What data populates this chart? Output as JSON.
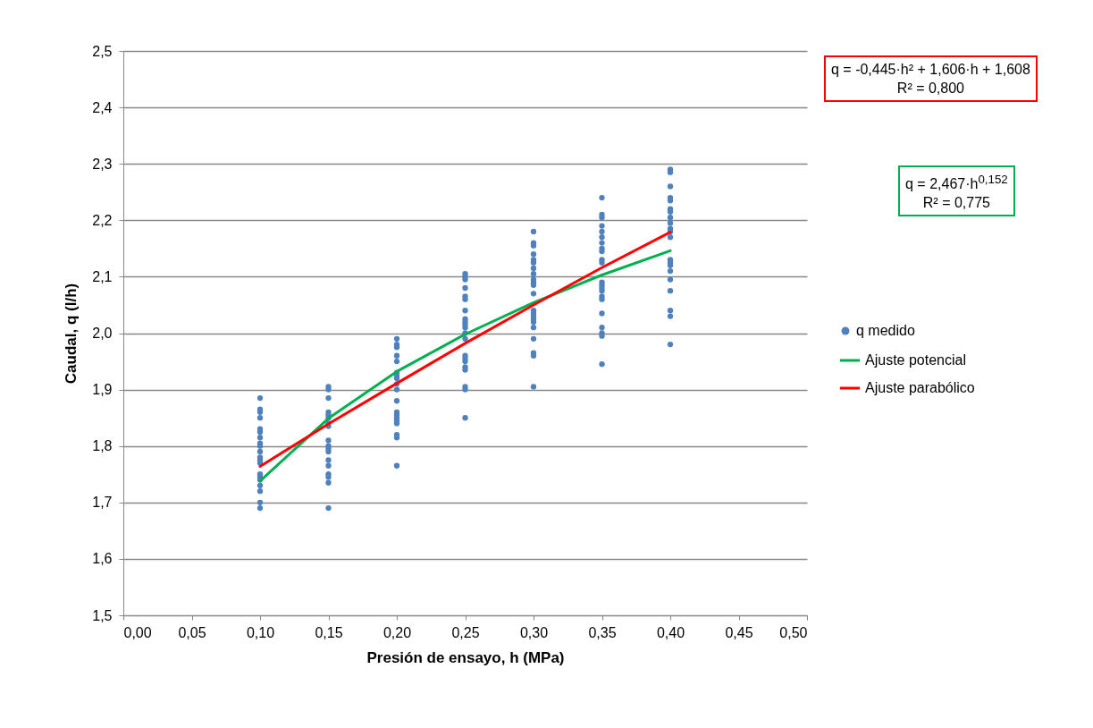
{
  "chart_data": {
    "type": "scatter",
    "xlabel": "Presión de ensayo, h (MPa)",
    "ylabel": "Caudal, q (l/h)",
    "xlim": [
      0,
      0.5
    ],
    "xticks": [
      {
        "value": 0,
        "label": "0,00"
      },
      {
        "value": 0.05,
        "label": "0,05"
      },
      {
        "value": 0.1,
        "label": "0,10"
      },
      {
        "value": 0.15,
        "label": "0,15"
      },
      {
        "value": 0.2,
        "label": "0,20"
      },
      {
        "value": 0.25,
        "label": "0,25"
      },
      {
        "value": 0.3,
        "label": "0,30"
      },
      {
        "value": 0.35,
        "label": "0,35"
      },
      {
        "value": 0.4,
        "label": "0,40"
      },
      {
        "value": 0.45,
        "label": "0,45"
      },
      {
        "value": 0.5,
        "label": "0,50"
      }
    ],
    "ylim": [
      1.5,
      2.5
    ],
    "yticks": [
      {
        "value": 1.5,
        "label": "1,5"
      },
      {
        "value": 1.6,
        "label": "1,6"
      },
      {
        "value": 1.7,
        "label": "1,7"
      },
      {
        "value": 1.8,
        "label": "1,8"
      },
      {
        "value": 1.9,
        "label": "1,9"
      },
      {
        "value": 2.0,
        "label": "2,0"
      },
      {
        "value": 2.1,
        "label": "2,1"
      },
      {
        "value": 2.2,
        "label": "2,2"
      },
      {
        "value": 2.3,
        "label": "2,3"
      },
      {
        "value": 2.4,
        "label": "2,4"
      },
      {
        "value": 2.5,
        "label": "2,5"
      }
    ],
    "grid": "y",
    "legend": "right",
    "series": [
      {
        "name": "q medido",
        "color": "#4f81bd",
        "x": [
          0.1,
          0.1,
          0.1,
          0.1,
          0.1,
          0.1,
          0.1,
          0.1,
          0.1,
          0.1,
          0.1,
          0.1,
          0.1,
          0.1,
          0.1,
          0.1,
          0.1,
          0.1,
          0.1,
          0.1,
          0.15,
          0.15,
          0.15,
          0.15,
          0.15,
          0.15,
          0.15,
          0.15,
          0.15,
          0.15,
          0.15,
          0.15,
          0.15,
          0.15,
          0.15,
          0.15,
          0.15,
          0.15,
          0.2,
          0.2,
          0.2,
          0.2,
          0.2,
          0.2,
          0.2,
          0.2,
          0.2,
          0.2,
          0.2,
          0.2,
          0.2,
          0.2,
          0.2,
          0.2,
          0.2,
          0.2,
          0.2,
          0.25,
          0.25,
          0.25,
          0.25,
          0.25,
          0.25,
          0.25,
          0.25,
          0.25,
          0.25,
          0.25,
          0.25,
          0.25,
          0.25,
          0.25,
          0.25,
          0.25,
          0.25,
          0.25,
          0.25,
          0.25,
          0.3,
          0.3,
          0.3,
          0.3,
          0.3,
          0.3,
          0.3,
          0.3,
          0.3,
          0.3,
          0.3,
          0.3,
          0.3,
          0.3,
          0.3,
          0.3,
          0.3,
          0.3,
          0.3,
          0.3,
          0.3,
          0.3,
          0.35,
          0.35,
          0.35,
          0.35,
          0.35,
          0.35,
          0.35,
          0.35,
          0.35,
          0.35,
          0.35,
          0.35,
          0.35,
          0.35,
          0.35,
          0.35,
          0.35,
          0.35,
          0.35,
          0.35,
          0.35,
          0.35,
          0.4,
          0.4,
          0.4,
          0.4,
          0.4,
          0.4,
          0.4,
          0.4,
          0.4,
          0.4,
          0.4,
          0.4,
          0.4,
          0.4,
          0.4,
          0.4,
          0.4,
          0.4,
          0.4,
          0.4,
          0.4
        ],
        "values": [
          1.885,
          1.865,
          1.86,
          1.85,
          1.83,
          1.825,
          1.815,
          1.805,
          1.8,
          1.79,
          1.78,
          1.775,
          1.77,
          1.75,
          1.745,
          1.74,
          1.73,
          1.72,
          1.7,
          1.69,
          1.905,
          1.9,
          1.885,
          1.86,
          1.855,
          1.85,
          1.84,
          1.835,
          1.81,
          1.8,
          1.795,
          1.79,
          1.775,
          1.765,
          1.75,
          1.745,
          1.735,
          1.69,
          1.99,
          1.98,
          1.975,
          1.96,
          1.95,
          1.93,
          1.925,
          1.92,
          1.91,
          1.9,
          1.88,
          1.86,
          1.855,
          1.85,
          1.845,
          1.84,
          1.82,
          1.815,
          1.765,
          2.105,
          2.1,
          2.095,
          2.08,
          2.065,
          2.06,
          2.04,
          2.025,
          2.02,
          2.015,
          2.01,
          2.0,
          1.99,
          1.96,
          1.955,
          1.95,
          1.94,
          1.935,
          1.905,
          1.9,
          1.85,
          2.18,
          2.16,
          2.155,
          2.14,
          2.13,
          2.125,
          2.115,
          2.105,
          2.095,
          2.09,
          2.085,
          2.07,
          2.04,
          2.035,
          2.03,
          2.025,
          2.02,
          2.01,
          1.99,
          1.965,
          1.96,
          1.905,
          2.24,
          2.21,
          2.205,
          2.19,
          2.18,
          2.17,
          2.16,
          2.15,
          2.145,
          2.13,
          2.125,
          2.09,
          2.085,
          2.08,
          2.075,
          2.065,
          2.06,
          2.035,
          2.01,
          2.0,
          1.995,
          1.945,
          2.29,
          2.285,
          2.26,
          2.24,
          2.235,
          2.22,
          2.215,
          2.205,
          2.195,
          2.185,
          2.18,
          2.17,
          2.13,
          2.125,
          2.12,
          2.11,
          2.095,
          2.075,
          2.04,
          2.03,
          1.98
        ]
      },
      {
        "name": "Ajuste potencial",
        "type": "line",
        "color": "#00b050",
        "x": [
          0.1,
          0.15,
          0.2,
          0.25,
          0.3,
          0.35,
          0.4
        ],
        "values": [
          1.738,
          1.849,
          1.932,
          1.998,
          2.054,
          2.103,
          2.146
        ]
      },
      {
        "name": "Ajuste parabólico",
        "type": "line",
        "color": "#ff0000",
        "x": [
          0.1,
          0.15,
          0.2,
          0.25,
          0.3,
          0.35,
          0.4
        ],
        "values": [
          1.764,
          1.839,
          1.911,
          1.982,
          2.05,
          2.116,
          2.179
        ]
      }
    ],
    "annotations": [
      "q = -0,445·h² + 1,606·h + 1,608\nR² = 0,800",
      "q = 2,467·h$^{0,152}$\nR² = 0,775"
    ]
  }
}
